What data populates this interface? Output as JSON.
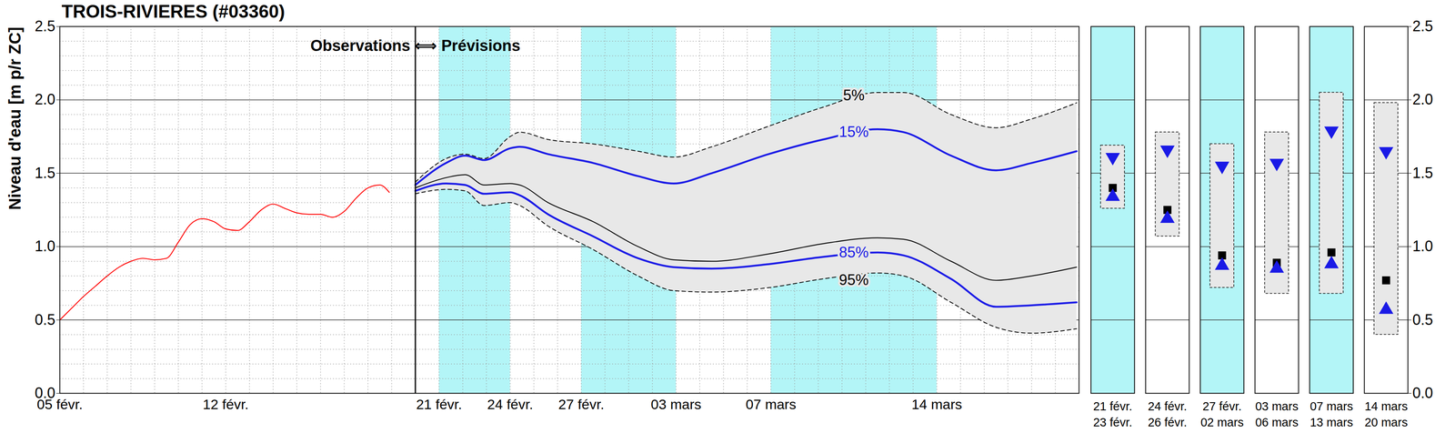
{
  "chart_data": {
    "type": "line",
    "title": "TROIS-RIVIERES (#03360)",
    "y_label": "Niveau d'eau [m p/r ZC]",
    "split_label": "Observations ⟺ Prévisions",
    "forecast_start": 20,
    "xlim": [
      5,
      48
    ],
    "xticks": [
      {
        "value": 5,
        "label": "05 févr."
      },
      {
        "value": 12,
        "label": "12 févr."
      },
      {
        "value": 21,
        "label": "21 févr."
      },
      {
        "value": 24,
        "label": "24 févr."
      },
      {
        "value": 27,
        "label": "27 févr."
      },
      {
        "value": 31,
        "label": "03 mars"
      },
      {
        "value": 35,
        "label": "07 mars"
      },
      {
        "value": 42,
        "label": "14 mars"
      }
    ],
    "ylim": [
      0,
      2.5
    ],
    "yticks": [
      {
        "value": 0,
        "label": "0.0"
      },
      0.5,
      {
        "value": 1,
        "label": "1.0"
      },
      1.5,
      {
        "value": 2,
        "label": "2.0"
      },
      2.5
    ],
    "grid": true,
    "shaded_periods": [
      [
        21,
        24
      ],
      [
        27,
        31
      ],
      [
        35,
        42
      ]
    ],
    "series": [
      {
        "name": "Observations",
        "color": "#ff0000",
        "line_style": "solid",
        "x": [
          5,
          5.5,
          6,
          6.5,
          7,
          7.5,
          8,
          8.5,
          9,
          9.5,
          10,
          10.5,
          11,
          11.5,
          12,
          12.5,
          13,
          13.5,
          14,
          14.5,
          15,
          15.5,
          16,
          16.5,
          17,
          17.5,
          18,
          18.5,
          18.9
        ],
        "values": [
          0.5,
          0.58,
          0.66,
          0.73,
          0.8,
          0.86,
          0.9,
          0.92,
          0.91,
          0.92,
          1.03,
          1.15,
          1.19,
          1.17,
          1.12,
          1.11,
          1.17,
          1.25,
          1.29,
          1.26,
          1.23,
          1.22,
          1.22,
          1.2,
          1.24,
          1.33,
          1.4,
          1.42,
          1.37
        ]
      },
      {
        "name": "5%",
        "color": "#000000",
        "line_style": "dashed",
        "x": [
          20,
          21.3,
          22.1,
          22.9,
          24,
          24.4,
          25.6,
          27.5,
          29.4,
          30.9,
          32.5,
          34.9,
          37.2,
          39.5,
          40.6,
          42.6,
          44.5,
          46,
          47.9
        ],
        "values": [
          1.44,
          1.6,
          1.63,
          1.6,
          1.75,
          1.78,
          1.73,
          1.7,
          1.65,
          1.61,
          1.68,
          1.82,
          1.95,
          2.05,
          2.05,
          1.9,
          1.81,
          1.87,
          1.98
        ]
      },
      {
        "name": "15%",
        "color": "#1a1ae6",
        "line_style": "solid",
        "x": [
          20,
          21.3,
          22.1,
          22.9,
          24,
          24.4,
          25.6,
          27.5,
          29.4,
          30.9,
          32.5,
          34.9,
          37.2,
          39.5,
          40.6,
          42.6,
          44.5,
          46,
          47.9
        ],
        "values": [
          1.42,
          1.57,
          1.62,
          1.59,
          1.67,
          1.68,
          1.63,
          1.57,
          1.48,
          1.43,
          1.5,
          1.63,
          1.73,
          1.8,
          1.78,
          1.62,
          1.52,
          1.57,
          1.65
        ]
      },
      {
        "name": null,
        "color": "#000000",
        "line_style": "solid",
        "x": [
          20,
          21.3,
          22.1,
          22.9,
          24,
          24.4,
          25.6,
          27.5,
          29.4,
          30.9,
          32.5,
          34.9,
          37.2,
          39.5,
          40.6,
          42.6,
          44.5,
          46,
          47.9
        ],
        "values": [
          1.4,
          1.47,
          1.49,
          1.42,
          1.43,
          1.42,
          1.3,
          1.17,
          1.0,
          0.91,
          0.9,
          0.95,
          1.02,
          1.06,
          1.05,
          0.9,
          0.77,
          0.8,
          0.86
        ]
      },
      {
        "name": "85%",
        "color": "#1a1ae6",
        "line_style": "solid",
        "x": [
          20,
          21.3,
          22.1,
          22.9,
          24,
          24.4,
          25.6,
          27.5,
          29.4,
          30.9,
          32.5,
          34.9,
          37.2,
          39.5,
          40.6,
          42.6,
          44.5,
          46,
          47.9
        ],
        "values": [
          1.38,
          1.43,
          1.42,
          1.36,
          1.37,
          1.35,
          1.22,
          1.07,
          0.92,
          0.86,
          0.85,
          0.88,
          0.93,
          0.96,
          0.94,
          0.78,
          0.59,
          0.6,
          0.62
        ]
      },
      {
        "name": "95%",
        "color": "#000000",
        "line_style": "dashed",
        "x": [
          20,
          21.3,
          22.1,
          22.9,
          24,
          24.4,
          25.6,
          27.5,
          29.4,
          30.9,
          32.5,
          34.9,
          37.2,
          39.5,
          40.6,
          42.6,
          44.5,
          46,
          47.9
        ],
        "values": [
          1.36,
          1.39,
          1.38,
          1.28,
          1.3,
          1.28,
          1.14,
          0.98,
          0.8,
          0.7,
          0.69,
          0.72,
          0.78,
          0.82,
          0.8,
          0.62,
          0.45,
          0.41,
          0.44
        ]
      }
    ],
    "annotations": [
      {
        "text": "5%",
        "x": 38.5,
        "y": 2.03,
        "color": "#000000"
      },
      {
        "text": "15%",
        "x": 38.5,
        "y": 1.78,
        "color": "#1a1ae6"
      },
      {
        "text": "85%",
        "x": 38.5,
        "y": 0.96,
        "color": "#1a1ae6"
      },
      {
        "text": "95%",
        "x": 38.5,
        "y": 0.77,
        "color": "#000000"
      }
    ],
    "summary": {
      "categories": [
        [
          "21 févr.",
          "23 févr."
        ],
        [
          "24 févr.",
          "26 févr."
        ],
        [
          "27 févr.",
          "02 mars"
        ],
        [
          "03 mars",
          "06 mars"
        ],
        [
          "07 mars",
          "13 mars"
        ],
        [
          "14 mars",
          "20 mars"
        ]
      ],
      "periods": [
        [
          21,
          23
        ],
        [
          24,
          26
        ],
        [
          27,
          30
        ],
        [
          31,
          34
        ],
        [
          35,
          41
        ],
        [
          42,
          48
        ]
      ],
      "series": [
        {
          "name": "5%",
          "type": "box",
          "color": "#000000",
          "values": [
            1.69,
            1.78,
            1.7,
            1.78,
            2.05,
            1.98
          ]
        },
        {
          "name": "95%",
          "type": "box",
          "color": "#000000",
          "values": [
            1.26,
            1.07,
            0.72,
            0.68,
            0.68,
            0.4
          ]
        },
        {
          "name": "15%",
          "type": "scatter",
          "color": "#1a1ae6",
          "marker": "triangle-down",
          "values": [
            1.61,
            1.66,
            1.55,
            1.57,
            1.79,
            1.65
          ]
        },
        {
          "name": null,
          "type": "scatter",
          "color": "#000000",
          "marker": "square",
          "values": [
            1.4,
            1.25,
            0.94,
            0.89,
            0.96,
            0.77
          ]
        },
        {
          "name": "85%",
          "type": "scatter",
          "color": "#1a1ae6",
          "marker": "triangle-up",
          "values": [
            1.34,
            1.19,
            0.87,
            0.85,
            0.88,
            0.57
          ]
        }
      ]
    }
  }
}
